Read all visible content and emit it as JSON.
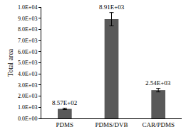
{
  "chart_data": {
    "type": "bar",
    "y_label": "Total area",
    "categories": [
      "PDMS",
      "PDMS/DVB",
      "CAR/PDMS"
    ],
    "values": [
      857,
      8910,
      2540
    ],
    "value_labels": [
      "8.57E+02",
      "8.91E+03",
      "2.54E+03"
    ],
    "errors": [
      60,
      600,
      160
    ],
    "color": "#595959",
    "data_labels": true,
    "grid": false,
    "ylim": [
      0,
      10000
    ],
    "yticks": [
      {
        "value": 0,
        "label": "0.0E+00"
      },
      {
        "value": 1000,
        "label": "1.0E+03"
      },
      {
        "value": 2000,
        "label": "2.0E+03"
      },
      {
        "value": 3000,
        "label": "3.0E+03"
      },
      {
        "value": 4000,
        "label": "4.0E+03"
      },
      {
        "value": 5000,
        "label": "5.0E+03"
      },
      {
        "value": 6000,
        "label": "6.0E+03"
      },
      {
        "value": 7000,
        "label": "7.0E+03"
      },
      {
        "value": 8000,
        "label": "8.0E+03"
      },
      {
        "value": 9000,
        "label": "9.0E+03"
      },
      {
        "value": 10000,
        "label": "1.0E+04"
      }
    ]
  }
}
